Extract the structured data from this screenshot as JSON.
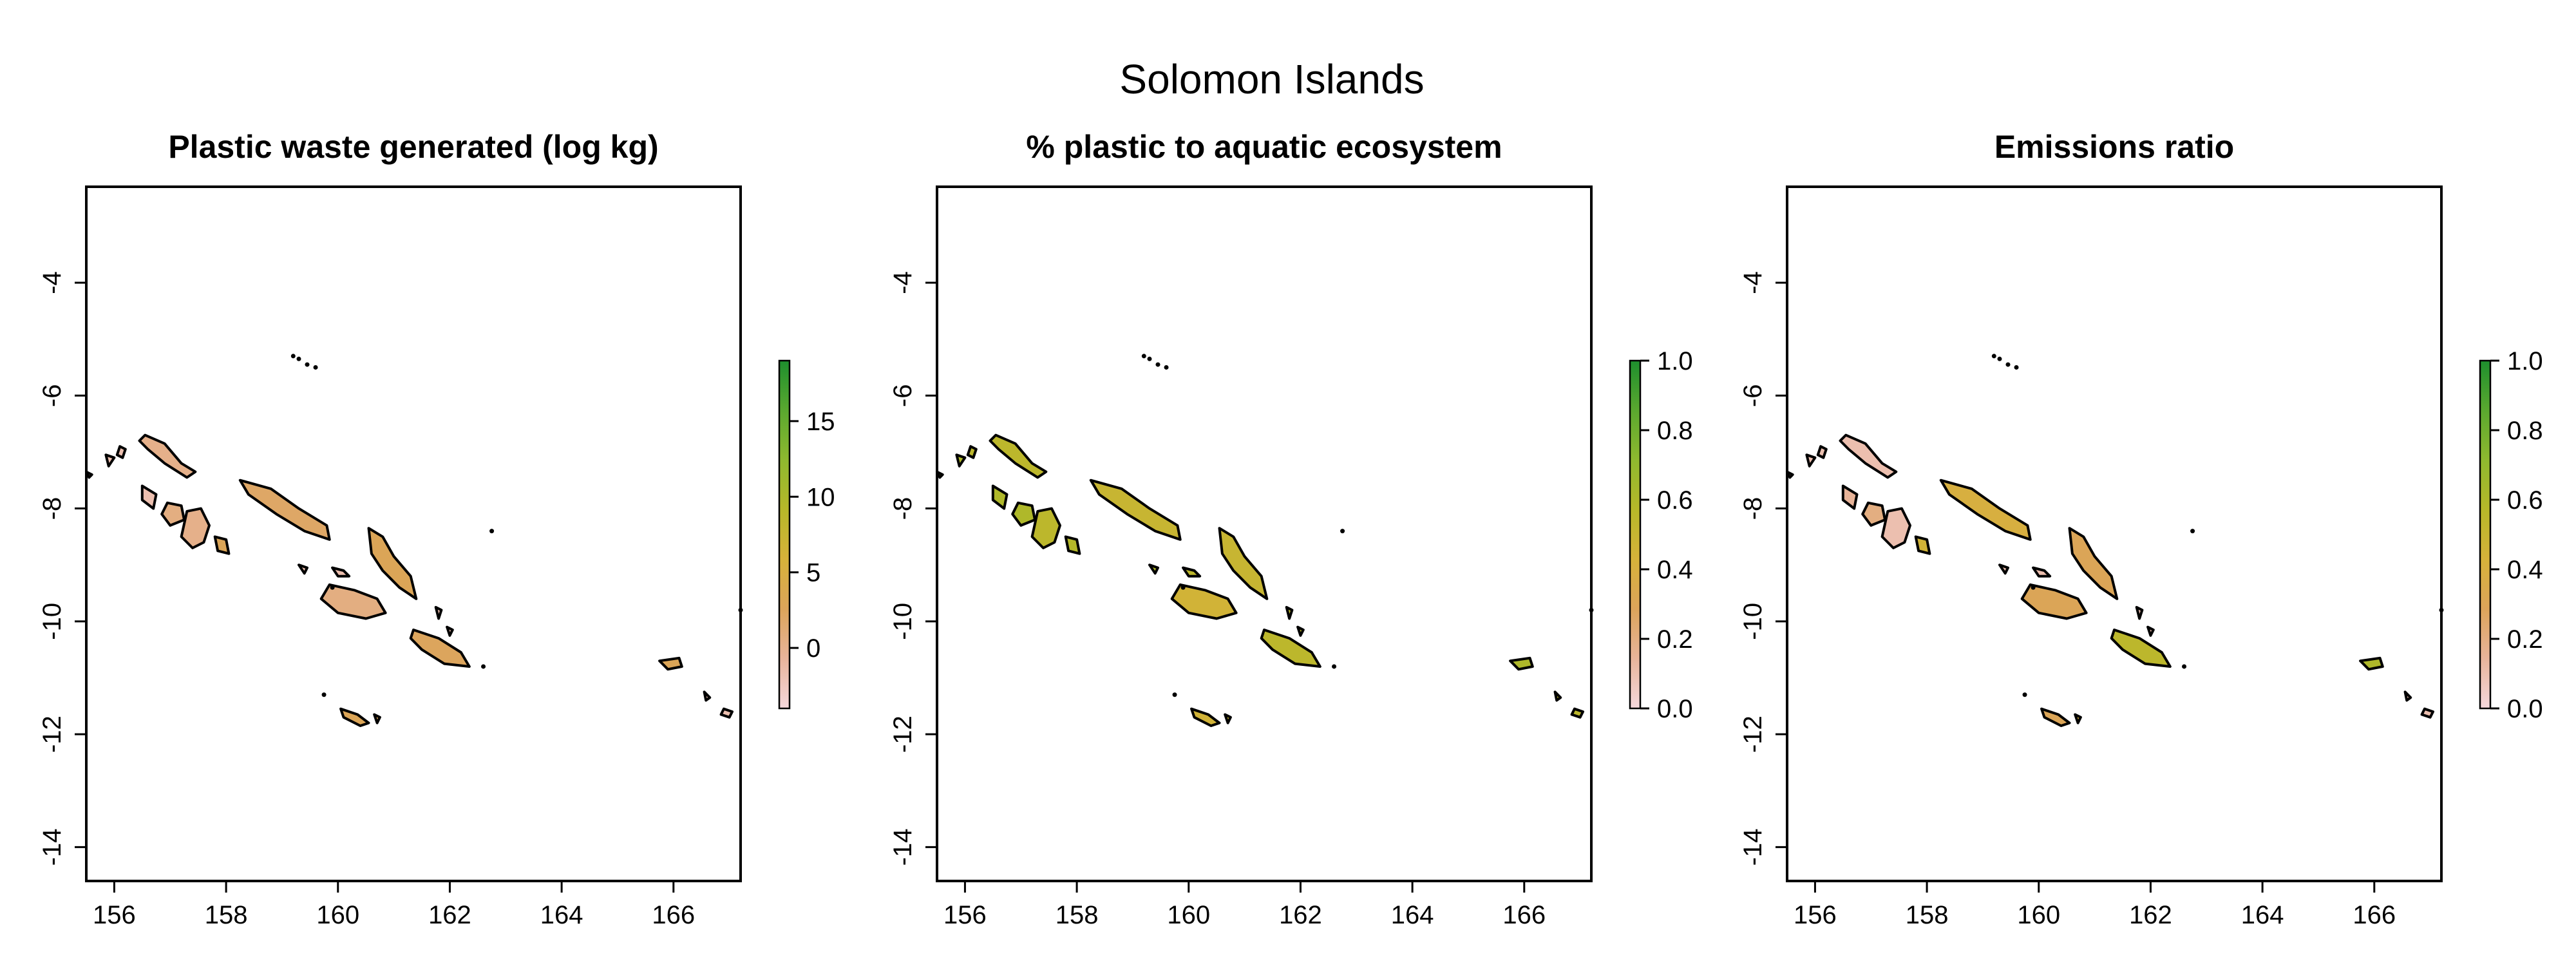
{
  "title": "Solomon Islands",
  "colors": {
    "ramp": [
      "#f5d8dc",
      "#e8b49b",
      "#dca45a",
      "#d6b23a",
      "#b7b829",
      "#8fb92f",
      "#5aa82f",
      "#1e8f2e"
    ],
    "outline": "#000000"
  },
  "chart_data": [
    {
      "type": "map",
      "title": "Plastic waste generated (log kg)",
      "xlim": [
        155.5,
        167.2
      ],
      "ylim": [
        -14.6,
        -2.3
      ],
      "x_ticks": [
        "156",
        "158",
        "160",
        "162",
        "164",
        "166"
      ],
      "y_ticks": [
        "-4",
        "-6",
        "-8",
        "-10",
        "-12",
        "-14"
      ],
      "legend": {
        "range": [
          -4,
          19
        ],
        "ticks": [
          "0",
          "5",
          "10",
          "15"
        ],
        "tick_values": [
          0,
          5,
          10,
          15
        ]
      },
      "island_levels": [
        0.18,
        0.1,
        0.1,
        0.1,
        0.1,
        0.2,
        0.18,
        0.3,
        0.26,
        0.2,
        0.3,
        0.28,
        0.1,
        0.1,
        0.3,
        0.3,
        0.3,
        0.1,
        0.1,
        0.1,
        0.1
      ]
    },
    {
      "type": "map",
      "title": "% plastic to aquatic ecosystem",
      "xlim": [
        155.5,
        167.2
      ],
      "ylim": [
        -14.6,
        -2.3
      ],
      "x_ticks": [
        "156",
        "158",
        "160",
        "162",
        "164",
        "166"
      ],
      "y_ticks": [
        "-4",
        "-6",
        "-8",
        "-10",
        "-12",
        "-14"
      ],
      "legend": {
        "range": [
          0,
          1
        ],
        "ticks": [
          "0.0",
          "0.2",
          "0.4",
          "0.6",
          "0.8",
          "1.0"
        ],
        "tick_values": [
          0,
          0.2,
          0.4,
          0.6,
          0.8,
          1
        ]
      },
      "island_levels": [
        0.55,
        0.58,
        0.6,
        0.55,
        0.6,
        0.6,
        0.55,
        0.58,
        0.5,
        0.45,
        0.5,
        0.55,
        0.6,
        0.55,
        0.45,
        0.5,
        0.6,
        0.55,
        0.55,
        0.55,
        0.55
      ]
    },
    {
      "type": "map",
      "title": "Emissions ratio",
      "xlim": [
        155.5,
        167.2
      ],
      "ylim": [
        -14.6,
        -2.3
      ],
      "x_ticks": [
        "156",
        "158",
        "160",
        "162",
        "164",
        "166"
      ],
      "y_ticks": [
        "-4",
        "-6",
        "-8",
        "-10",
        "-12",
        "-14"
      ],
      "legend": {
        "range": [
          0,
          1
        ],
        "ticks": [
          "0.0",
          "0.2",
          "0.4",
          "0.6",
          "0.8",
          "1.0"
        ],
        "tick_values": [
          0,
          0.2,
          0.4,
          0.6,
          0.8,
          1
        ]
      },
      "island_levels": [
        0.1,
        0.1,
        0.1,
        0.1,
        0.15,
        0.2,
        0.1,
        0.45,
        0.4,
        0.3,
        0.3,
        0.55,
        0.1,
        0.1,
        0.3,
        0.4,
        0.6,
        0.1,
        0.1,
        0.1,
        0.1
      ]
    }
  ]
}
